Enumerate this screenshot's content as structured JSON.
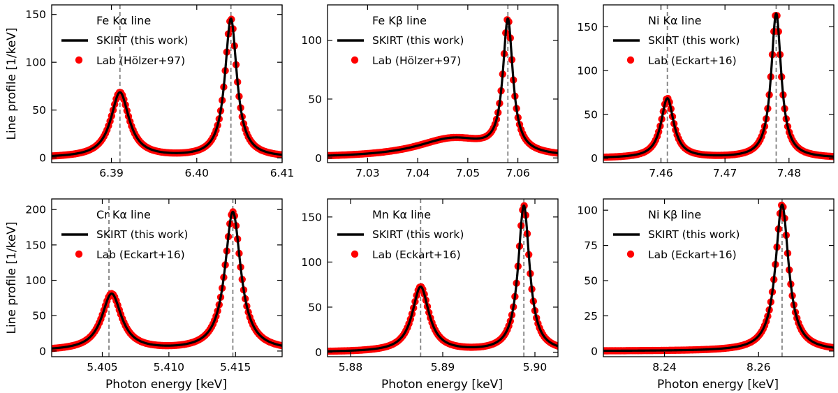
{
  "figure": {
    "ylabel": "Line profile [1/keV]",
    "xlabel": "Photon energy [keV]"
  },
  "colors": {
    "model_line": "#000000",
    "lab_points": "#ff0000",
    "reference_line": "#808080"
  },
  "chart_data": [
    {
      "type": "line",
      "title": "Fe Kα line",
      "xlim": [
        6.383,
        6.41
      ],
      "ylim": [
        -5,
        160
      ],
      "xticks": [
        6.39,
        6.4,
        6.41
      ],
      "xticklabels": [
        "6.39",
        "6.40",
        "6.41"
      ],
      "yticks": [
        0,
        50,
        100,
        150
      ],
      "yticklabels": [
        "0",
        "50",
        "100",
        "150"
      ],
      "reference_lines_x": [
        6.391,
        6.404
      ],
      "peaks": [
        {
          "center": 6.391,
          "height": 68,
          "width": 0.0013,
          "asymmetry": 1.0
        },
        {
          "center": 6.404,
          "height": 145,
          "width": 0.00085,
          "asymmetry": 1.0
        }
      ],
      "background": 0,
      "series": [
        {
          "name": "SKIRT (this work)",
          "style": "line"
        },
        {
          "name": "Lab (Hölzer+97)",
          "style": "points"
        }
      ]
    },
    {
      "type": "line",
      "title": "Fe Kβ line",
      "xlim": [
        7.022,
        7.068
      ],
      "ylim": [
        -4,
        130
      ],
      "xticks": [
        7.03,
        7.04,
        7.05,
        7.06
      ],
      "xticklabels": [
        "7.03",
        "7.04",
        "7.05",
        "7.06"
      ],
      "yticks": [
        0,
        50,
        100
      ],
      "yticklabels": [
        "0",
        "50",
        "100"
      ],
      "reference_lines_x": [
        7.058
      ],
      "peaks": [
        {
          "center": 7.058,
          "height": 112,
          "width": 0.0012,
          "asymmetry": 1.0
        },
        {
          "center": 7.047,
          "height": 16,
          "width": 0.009,
          "asymmetry": 1.0
        }
      ],
      "background": 0,
      "series": [
        {
          "name": "SKIRT (this work)",
          "style": "line"
        },
        {
          "name": "Lab (Hölzer+97)",
          "style": "points"
        }
      ]
    },
    {
      "type": "line",
      "title": "Ni Kα line",
      "xlim": [
        7.451,
        7.487
      ],
      "ylim": [
        -5,
        175
      ],
      "xticks": [
        7.46,
        7.47,
        7.48
      ],
      "xticklabels": [
        "7.46",
        "7.47",
        "7.48"
      ],
      "yticks": [
        0,
        50,
        100,
        150
      ],
      "yticklabels": [
        "0",
        "50",
        "100",
        "150"
      ],
      "reference_lines_x": [
        7.461,
        7.478
      ],
      "peaks": [
        {
          "center": 7.461,
          "height": 68,
          "width": 0.0012,
          "asymmetry": 1.0
        },
        {
          "center": 7.478,
          "height": 165,
          "width": 0.00095,
          "asymmetry": 1.0
        }
      ],
      "background": 0,
      "series": [
        {
          "name": "SKIRT (this work)",
          "style": "line"
        },
        {
          "name": "Lab (Eckart+16)",
          "style": "points"
        }
      ]
    },
    {
      "type": "line",
      "title": "Cr Kα line",
      "xlim": [
        5.4012,
        5.4185
      ],
      "ylim": [
        -8,
        215
      ],
      "xticks": [
        5.405,
        5.41,
        5.415
      ],
      "xticklabels": [
        "5.405",
        "5.410",
        "5.415"
      ],
      "yticks": [
        0,
        50,
        100,
        150,
        200
      ],
      "yticklabels": [
        "0",
        "50",
        "100",
        "150",
        "200"
      ],
      "reference_lines_x": [
        5.4055,
        5.4148
      ],
      "peaks": [
        {
          "center": 5.4057,
          "height": 80,
          "width": 0.0009,
          "asymmetry": 1.0
        },
        {
          "center": 5.4148,
          "height": 196,
          "width": 0.00072,
          "asymmetry": 1.0
        }
      ],
      "background": 0,
      "series": [
        {
          "name": "SKIRT (this work)",
          "style": "line"
        },
        {
          "name": "Lab (Eckart+16)",
          "style": "points"
        }
      ]
    },
    {
      "type": "line",
      "title": "Mn Kα line",
      "xlim": [
        5.8775,
        5.9025
      ],
      "ylim": [
        -5,
        170
      ],
      "xticks": [
        5.88,
        5.89,
        5.9
      ],
      "xticklabels": [
        "5.88",
        "5.89",
        "5.90"
      ],
      "yticks": [
        0,
        50,
        100,
        150
      ],
      "yticklabels": [
        "0",
        "50",
        "100",
        "150"
      ],
      "reference_lines_x": [
        5.8876,
        5.8988
      ],
      "peaks": [
        {
          "center": 5.8876,
          "height": 72,
          "width": 0.0011,
          "asymmetry": 1.0
        },
        {
          "center": 5.8988,
          "height": 162,
          "width": 0.00075,
          "asymmetry": 1.0
        }
      ],
      "background": 0,
      "series": [
        {
          "name": "SKIRT (this work)",
          "style": "line"
        },
        {
          "name": "Lab (Eckart+16)",
          "style": "points"
        }
      ]
    },
    {
      "type": "line",
      "title": "Ni Kβ line",
      "xlim": [
        8.227,
        8.276
      ],
      "ylim": [
        -4,
        108
      ],
      "xticks": [
        8.24,
        8.26
      ],
      "xticklabels": [
        "8.24",
        "8.26"
      ],
      "yticks": [
        0,
        25,
        50,
        75,
        100
      ],
      "yticklabels": [
        "0",
        "25",
        "50",
        "75",
        "100"
      ],
      "reference_lines_x": [
        8.265
      ],
      "peaks": [
        {
          "center": 8.265,
          "height": 104,
          "width": 0.0017,
          "asymmetry": 1.0
        }
      ],
      "background": 0,
      "series": [
        {
          "name": "SKIRT (this work)",
          "style": "line"
        },
        {
          "name": "Lab (Eckart+16)",
          "style": "points"
        }
      ]
    }
  ]
}
